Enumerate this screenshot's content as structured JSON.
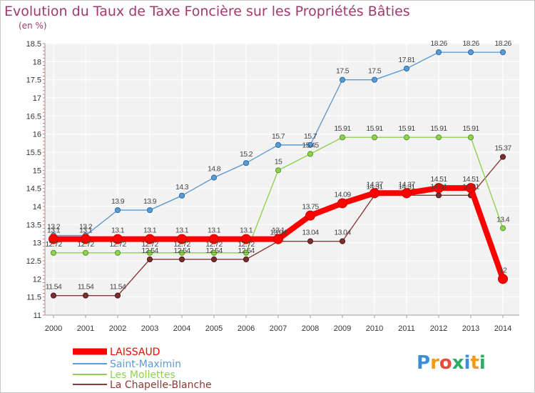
{
  "chart_data": {
    "type": "line",
    "title": "Evolution du Taux de Taxe Foncière sur les Propriétés Bâties",
    "unit_label": "(en %)",
    "xlabel": "",
    "ylabel": "(en %)",
    "x": [
      "2000",
      "2001",
      "2002",
      "2003",
      "2004",
      "2005",
      "2006",
      "2007",
      "2008",
      "2009",
      "2010",
      "2011",
      "2012",
      "2013",
      "2014"
    ],
    "ylim": [
      11,
      18.5
    ],
    "yticks": [
      "11",
      "11.5",
      "12",
      "12.5",
      "13",
      "13.5",
      "14",
      "14.5",
      "15",
      "15.5",
      "16",
      "16.5",
      "17",
      "17.5",
      "18",
      "18.5"
    ],
    "grid": true,
    "legend_position": "bottom-left",
    "series": [
      {
        "name": "LAISSAUD",
        "color": "#ff0000",
        "values": [
          13.1,
          13.1,
          13.1,
          13.1,
          13.1,
          13.1,
          13.1,
          13.1,
          13.75,
          14.09,
          14.37,
          14.37,
          14.51,
          14.51,
          12
        ],
        "labels": [
          "13.1",
          "13.1",
          "13.1",
          "13.1",
          "13.1",
          "13.1",
          "13.1",
          "13.1",
          "13.75",
          "14.09",
          "14.37",
          "14.37",
          "14.51",
          "14.51",
          "12"
        ]
      },
      {
        "name": "Saint-Maximin",
        "color": "#5b9bd5",
        "values": [
          13.2,
          13.2,
          13.9,
          13.9,
          14.3,
          14.8,
          15.2,
          15.7,
          15.7,
          17.5,
          17.5,
          17.81,
          18.26,
          18.26,
          18.26
        ],
        "labels": [
          "13.2",
          "13.2",
          "13.9",
          "13.9",
          "14.3",
          "14.8",
          "15.2",
          "15.7",
          "15.7",
          "17.5",
          "17.5",
          "17.81",
          "18.26",
          "18.26",
          "18.26"
        ]
      },
      {
        "name": "Les Mollettes",
        "color": "#8fd14f",
        "values": [
          12.72,
          12.72,
          12.72,
          12.72,
          12.72,
          12.72,
          12.72,
          15,
          15.45,
          15.91,
          15.91,
          15.91,
          15.91,
          15.91,
          13.4
        ],
        "labels": [
          "12.72",
          "12.72",
          "12.72",
          "12.72",
          "12.72",
          "12.72",
          "12.72",
          "15",
          "15.45",
          "15.91",
          "15.91",
          "15.91",
          "15.91",
          "15.91",
          "13.4"
        ]
      },
      {
        "name": "La Chapelle-Blanche",
        "color": "#8b3a3a",
        "values": [
          11.54,
          11.54,
          11.54,
          12.54,
          12.54,
          12.54,
          12.54,
          13.04,
          13.04,
          13.04,
          14.31,
          14.31,
          14.31,
          14.31,
          15.37
        ],
        "labels": [
          "11.54",
          "11.54",
          "11.54",
          "12.54",
          "12.54",
          "12.54",
          "12.54",
          "13.04",
          "13.04",
          "13.04",
          "14.31",
          "14.31",
          "14.31",
          "14.31",
          "15.37"
        ]
      }
    ]
  },
  "logo": {
    "letters": [
      "P",
      "r",
      "o",
      "x",
      "i",
      "t",
      "i"
    ],
    "colors": [
      "#3a8fd6",
      "#f39c12",
      "#e74c3c",
      "#27ae60",
      "#3a8fd6",
      "#f39c12",
      "#27ae60"
    ]
  }
}
